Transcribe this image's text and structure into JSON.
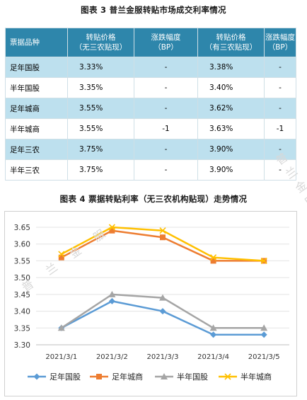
{
  "table_title": "图表 3  普兰金服转贴市场成交利率情况",
  "chart_title": "图表 4  票据转贴利率（无三农机构贴现）走势情况",
  "watermark": "普 兰 金 服",
  "table": {
    "headers": [
      {
        "line1": "票据品种",
        "line2": ""
      },
      {
        "line1": "转贴价格",
        "line2": "（无三农贴现）"
      },
      {
        "line1": "涨跌幅度",
        "line2": "（BP）"
      },
      {
        "line1": "转贴价格",
        "line2": "（有三农贴现）"
      },
      {
        "line1": "涨跌幅度",
        "line2": "（BP）"
      }
    ],
    "rows": [
      [
        "足年国股",
        "3.33%",
        "-",
        "3.38%",
        "-"
      ],
      [
        "半年国股",
        "3.35%",
        "-",
        "3.40%",
        "-"
      ],
      [
        "足年城商",
        "3.55%",
        "-",
        "3.62%",
        "-"
      ],
      [
        "半年城商",
        "3.55%",
        "-1",
        "3.63%",
        "-1"
      ],
      [
        "足年三农",
        "3.75%",
        "-",
        "3.90%",
        "-"
      ],
      [
        "半年三农",
        "3.75%",
        "-",
        "3.90%",
        "-"
      ]
    ]
  },
  "chart_data": {
    "type": "line",
    "title": "图表 4  票据转贴利率（无三农机构贴现）走势情况",
    "xlabel": "",
    "ylabel": "",
    "categories": [
      "2021/3/1",
      "2021/3/2",
      "2021/3/3",
      "2021/3/4",
      "2021/3/5"
    ],
    "ylim": [
      3.3,
      3.65
    ],
    "yticks": [
      "3.30",
      "3.35",
      "3.40",
      "3.45",
      "3.50",
      "3.55",
      "3.60",
      "3.65"
    ],
    "grid": "horizontal",
    "legend": "bottom",
    "series": [
      {
        "name": "足年国股",
        "values": [
          3.35,
          3.43,
          3.4,
          3.33,
          3.33
        ],
        "color": "#5b9bd5",
        "marker": "diamond"
      },
      {
        "name": "足年城商",
        "values": [
          3.56,
          3.64,
          3.62,
          3.55,
          3.55
        ],
        "color": "#ed7d31",
        "marker": "square"
      },
      {
        "name": "半年国股",
        "values": [
          3.35,
          3.45,
          3.44,
          3.35,
          3.35
        ],
        "color": "#a5a5a5",
        "marker": "triangle"
      },
      {
        "name": "半年城商",
        "values": [
          3.57,
          3.65,
          3.64,
          3.56,
          3.55
        ],
        "color": "#ffc000",
        "marker": "cross"
      }
    ]
  }
}
